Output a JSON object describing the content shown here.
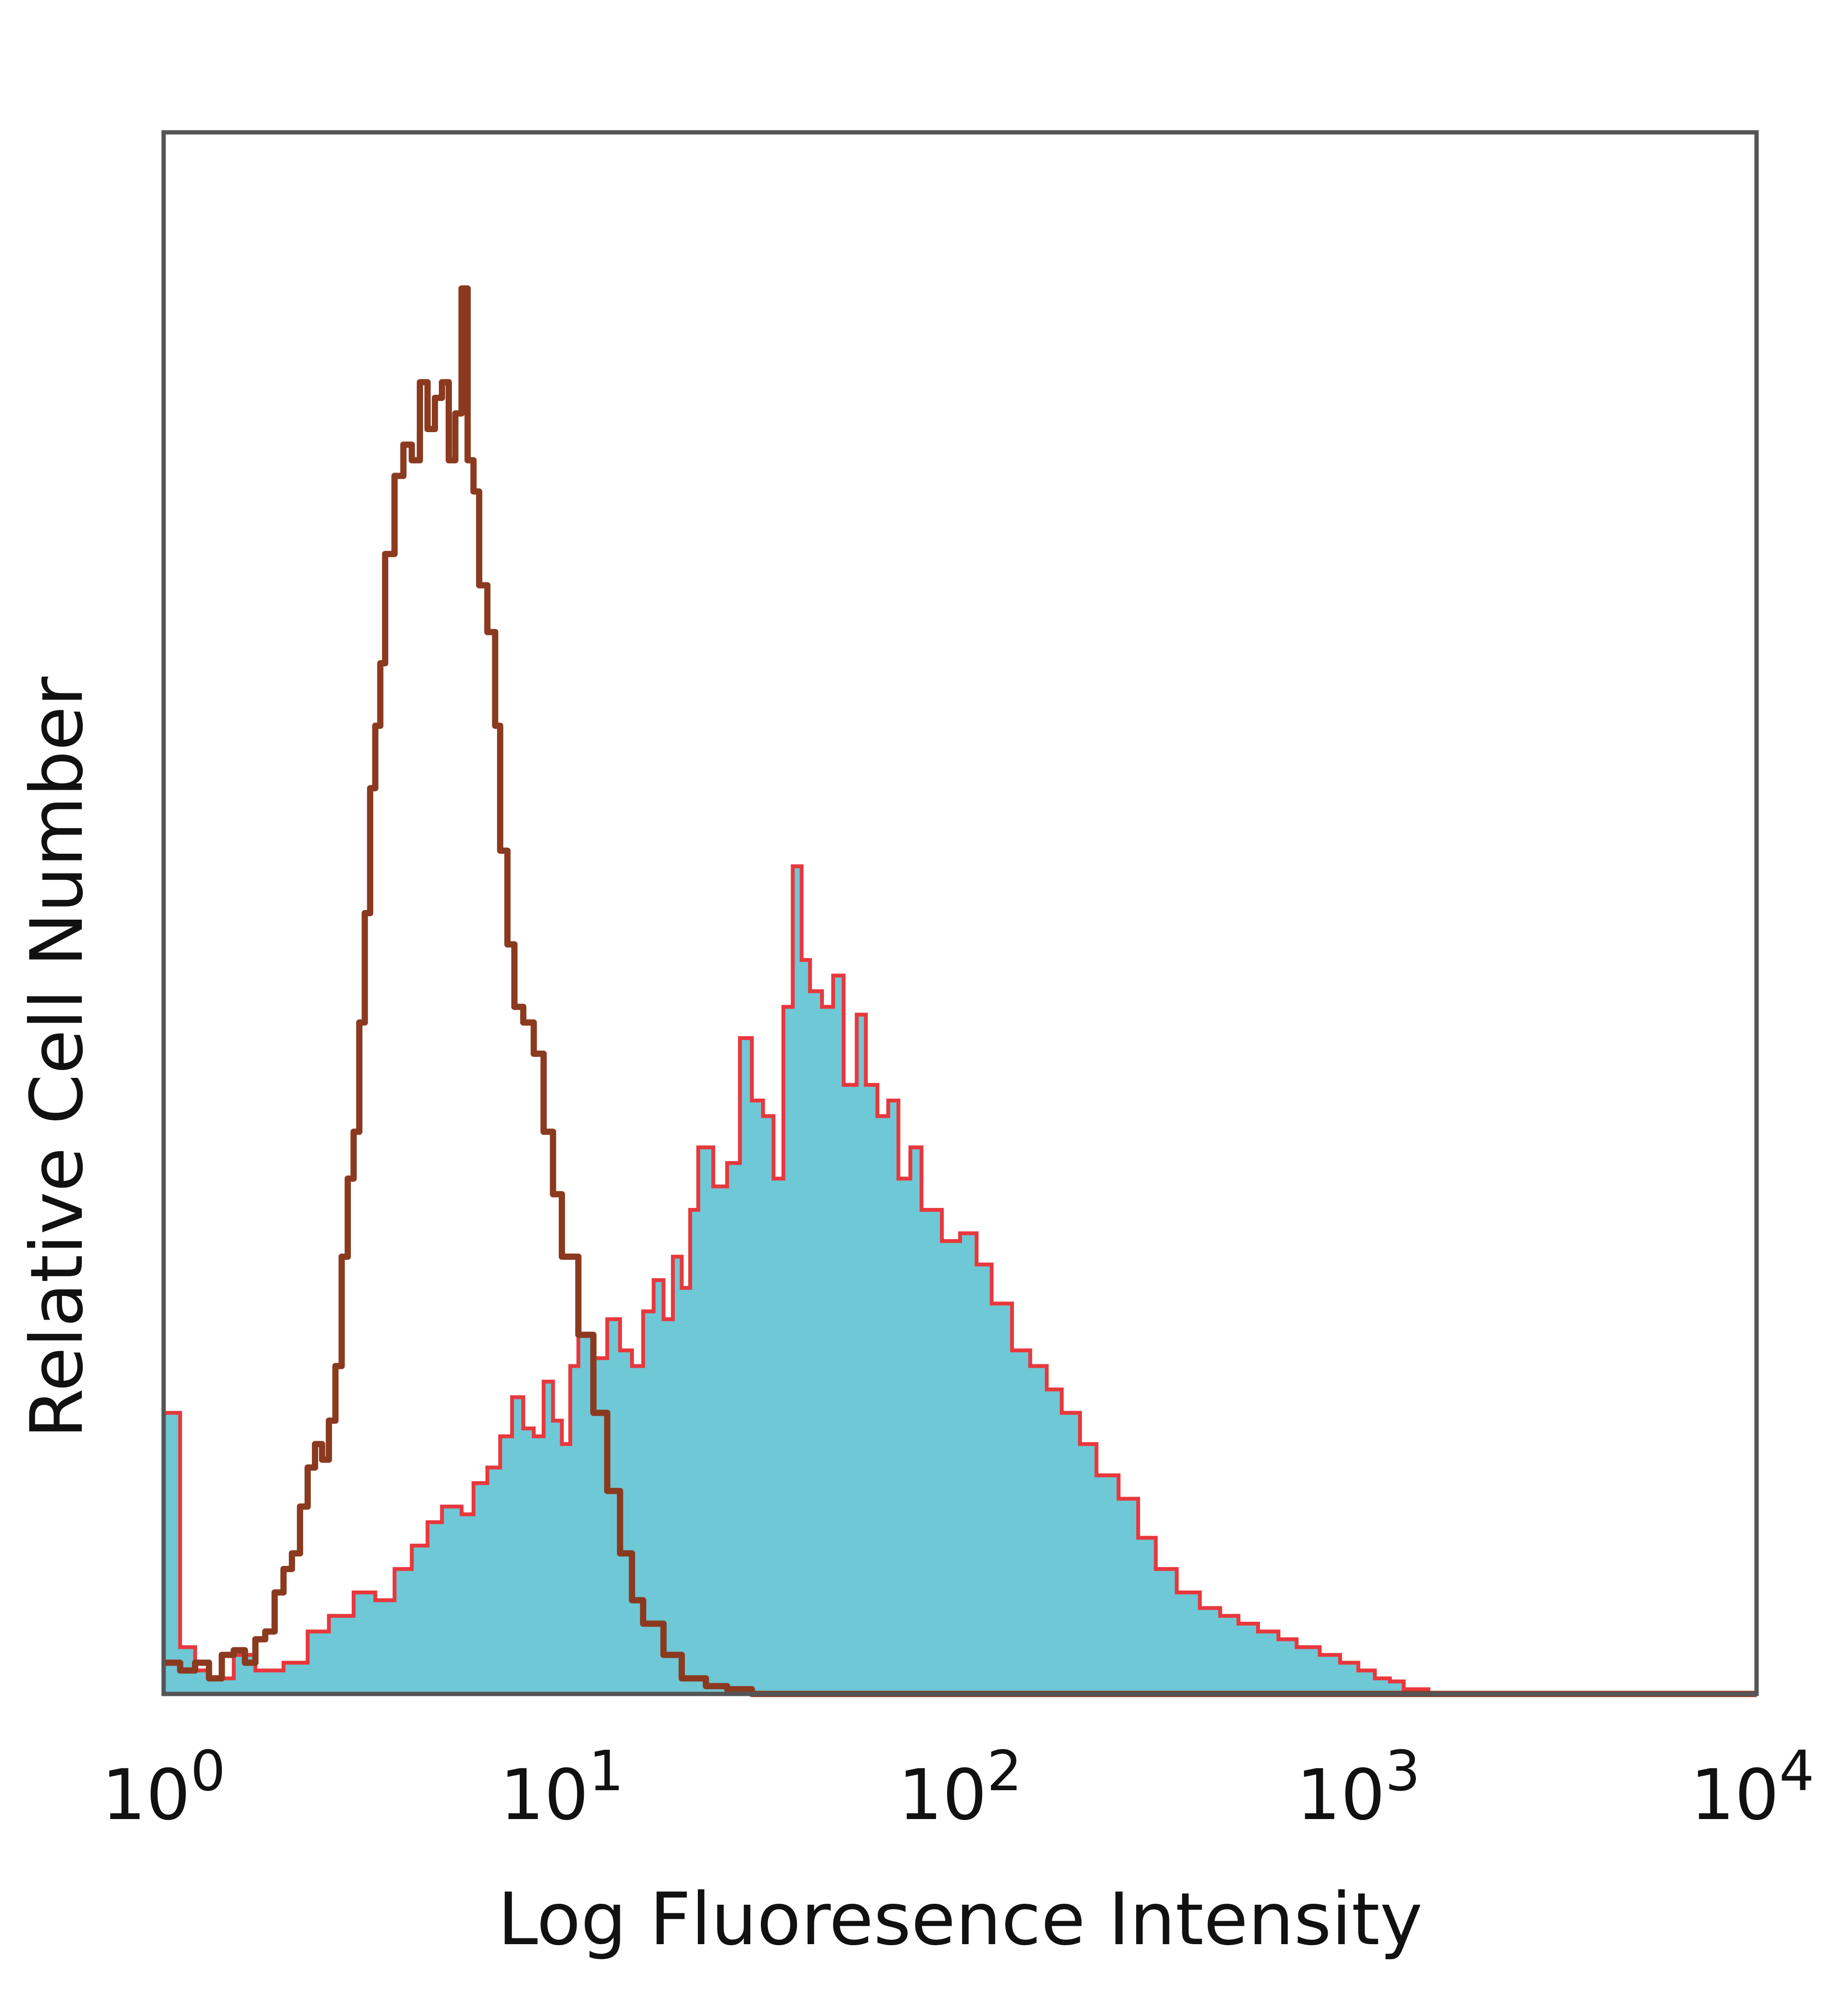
{
  "chart_data": {
    "type": "area",
    "xlabel": "Log Fluoresence Intensity",
    "ylabel": "Relative Cell Number",
    "xscale": "log",
    "xlim": [
      1,
      10000
    ],
    "ylim": [
      0,
      100
    ],
    "grid": false,
    "legend": "none",
    "x_ticks": [
      {
        "value": 1,
        "base": "10",
        "exp": "0"
      },
      {
        "value": 10,
        "base": "10",
        "exp": "1"
      },
      {
        "value": 100,
        "base": "10",
        "exp": "2"
      },
      {
        "value": 1000,
        "base": "10",
        "exp": "3"
      },
      {
        "value": 10000,
        "base": "10",
        "exp": "4"
      }
    ],
    "series": [
      {
        "style": "filled",
        "fill": "#6fc8d5",
        "stroke": "#e8383d",
        "x": [
          1.0,
          1.1,
          1.2,
          1.3,
          1.5,
          1.7,
          2.0,
          2.3,
          2.6,
          3.0,
          3.4,
          3.8,
          4.2,
          4.6,
          5.0,
          5.6,
          6.0,
          6.5,
          7.0,
          7.5,
          8.0,
          8.5,
          9.0,
          9.5,
          10.0,
          10.5,
          11.0,
          12.0,
          13.0,
          14.0,
          15.0,
          16.0,
          17.0,
          18.0,
          19.0,
          20.0,
          21.0,
          22.0,
          24.0,
          26.0,
          28.0,
          30.0,
          32.0,
          34.0,
          36.0,
          38.0,
          40.0,
          42.0,
          45.0,
          48.0,
          51.0,
          55.0,
          58.0,
          62.0,
          66.0,
          70.0,
          75.0,
          80.0,
          90.0,
          100.0,
          110.0,
          120.0,
          135.0,
          150.0,
          165.0,
          180.0,
          200.0,
          220.0,
          250.0,
          280.0,
          310.0,
          350.0,
          400.0,
          450.0,
          500.0,
          560.0,
          630.0,
          700.0,
          800.0,
          900.0,
          1000.0,
          1100.0,
          1200.0,
          1300.0,
          1500.0,
          10000.0
        ],
        "values": [
          18.0,
          3.0,
          1.5,
          1.0,
          2.5,
          1.5,
          2.0,
          4.0,
          5.0,
          6.5,
          6.0,
          8.0,
          9.5,
          11.0,
          12.0,
          11.5,
          13.5,
          14.5,
          16.5,
          19.0,
          17.0,
          16.5,
          20.0,
          17.5,
          16.0,
          21.0,
          23.0,
          21.5,
          24.0,
          22.0,
          21.0,
          24.5,
          26.5,
          24.0,
          28.0,
          26.0,
          31.0,
          35.0,
          32.5,
          34.0,
          42.0,
          38.0,
          37.0,
          33.0,
          44.0,
          53.0,
          47.0,
          45.0,
          44.0,
          46.0,
          39.0,
          43.5,
          39.0,
          37.0,
          38.0,
          33.0,
          35.0,
          31.0,
          29.0,
          29.5,
          27.5,
          25.0,
          22.0,
          21.0,
          19.5,
          18.0,
          16.0,
          14.0,
          12.5,
          10.0,
          8.0,
          6.5,
          5.5,
          5.0,
          4.5,
          4.0,
          3.5,
          3.0,
          2.5,
          2.0,
          1.5,
          1.0,
          0.8,
          0.3,
          0.0,
          0.0
        ]
      },
      {
        "style": "line",
        "stroke": "#8b3a1f",
        "x": [
          1.0,
          1.1,
          1.2,
          1.3,
          1.4,
          1.5,
          1.6,
          1.7,
          1.8,
          1.9,
          2.0,
          2.1,
          2.2,
          2.3,
          2.4,
          2.5,
          2.6,
          2.7,
          2.8,
          2.9,
          3.0,
          3.1,
          3.2,
          3.3,
          3.4,
          3.5,
          3.6,
          3.8,
          4.0,
          4.2,
          4.4,
          4.6,
          4.8,
          5.0,
          5.2,
          5.4,
          5.6,
          5.8,
          6.0,
          6.2,
          6.5,
          6.8,
          7.0,
          7.3,
          7.6,
          8.0,
          8.5,
          9.0,
          9.5,
          10.0,
          11.0,
          12.0,
          13.0,
          14.0,
          15.0,
          16.0,
          18.0,
          20.0,
          23.0,
          26.0,
          30.0,
          10000.0
        ],
        "values": [
          2.0,
          1.5,
          2.0,
          1.0,
          2.5,
          2.8,
          2.0,
          3.5,
          4.0,
          6.5,
          8.0,
          9.0,
          12.0,
          14.5,
          16.0,
          15.0,
          17.5,
          21.0,
          28.0,
          33.0,
          36.0,
          43.0,
          50.0,
          58.0,
          62.0,
          66.0,
          73.0,
          78.0,
          80.0,
          79.0,
          84.0,
          81.0,
          83.0,
          84.0,
          79.0,
          82.0,
          90.0,
          79.0,
          77.0,
          71.0,
          68.0,
          62.0,
          54.0,
          48.0,
          44.0,
          43.0,
          41.0,
          36.0,
          32.0,
          28.0,
          23.0,
          18.0,
          13.0,
          9.0,
          6.0,
          4.5,
          2.5,
          1.0,
          0.5,
          0.3,
          0.0,
          0.0
        ]
      }
    ]
  }
}
